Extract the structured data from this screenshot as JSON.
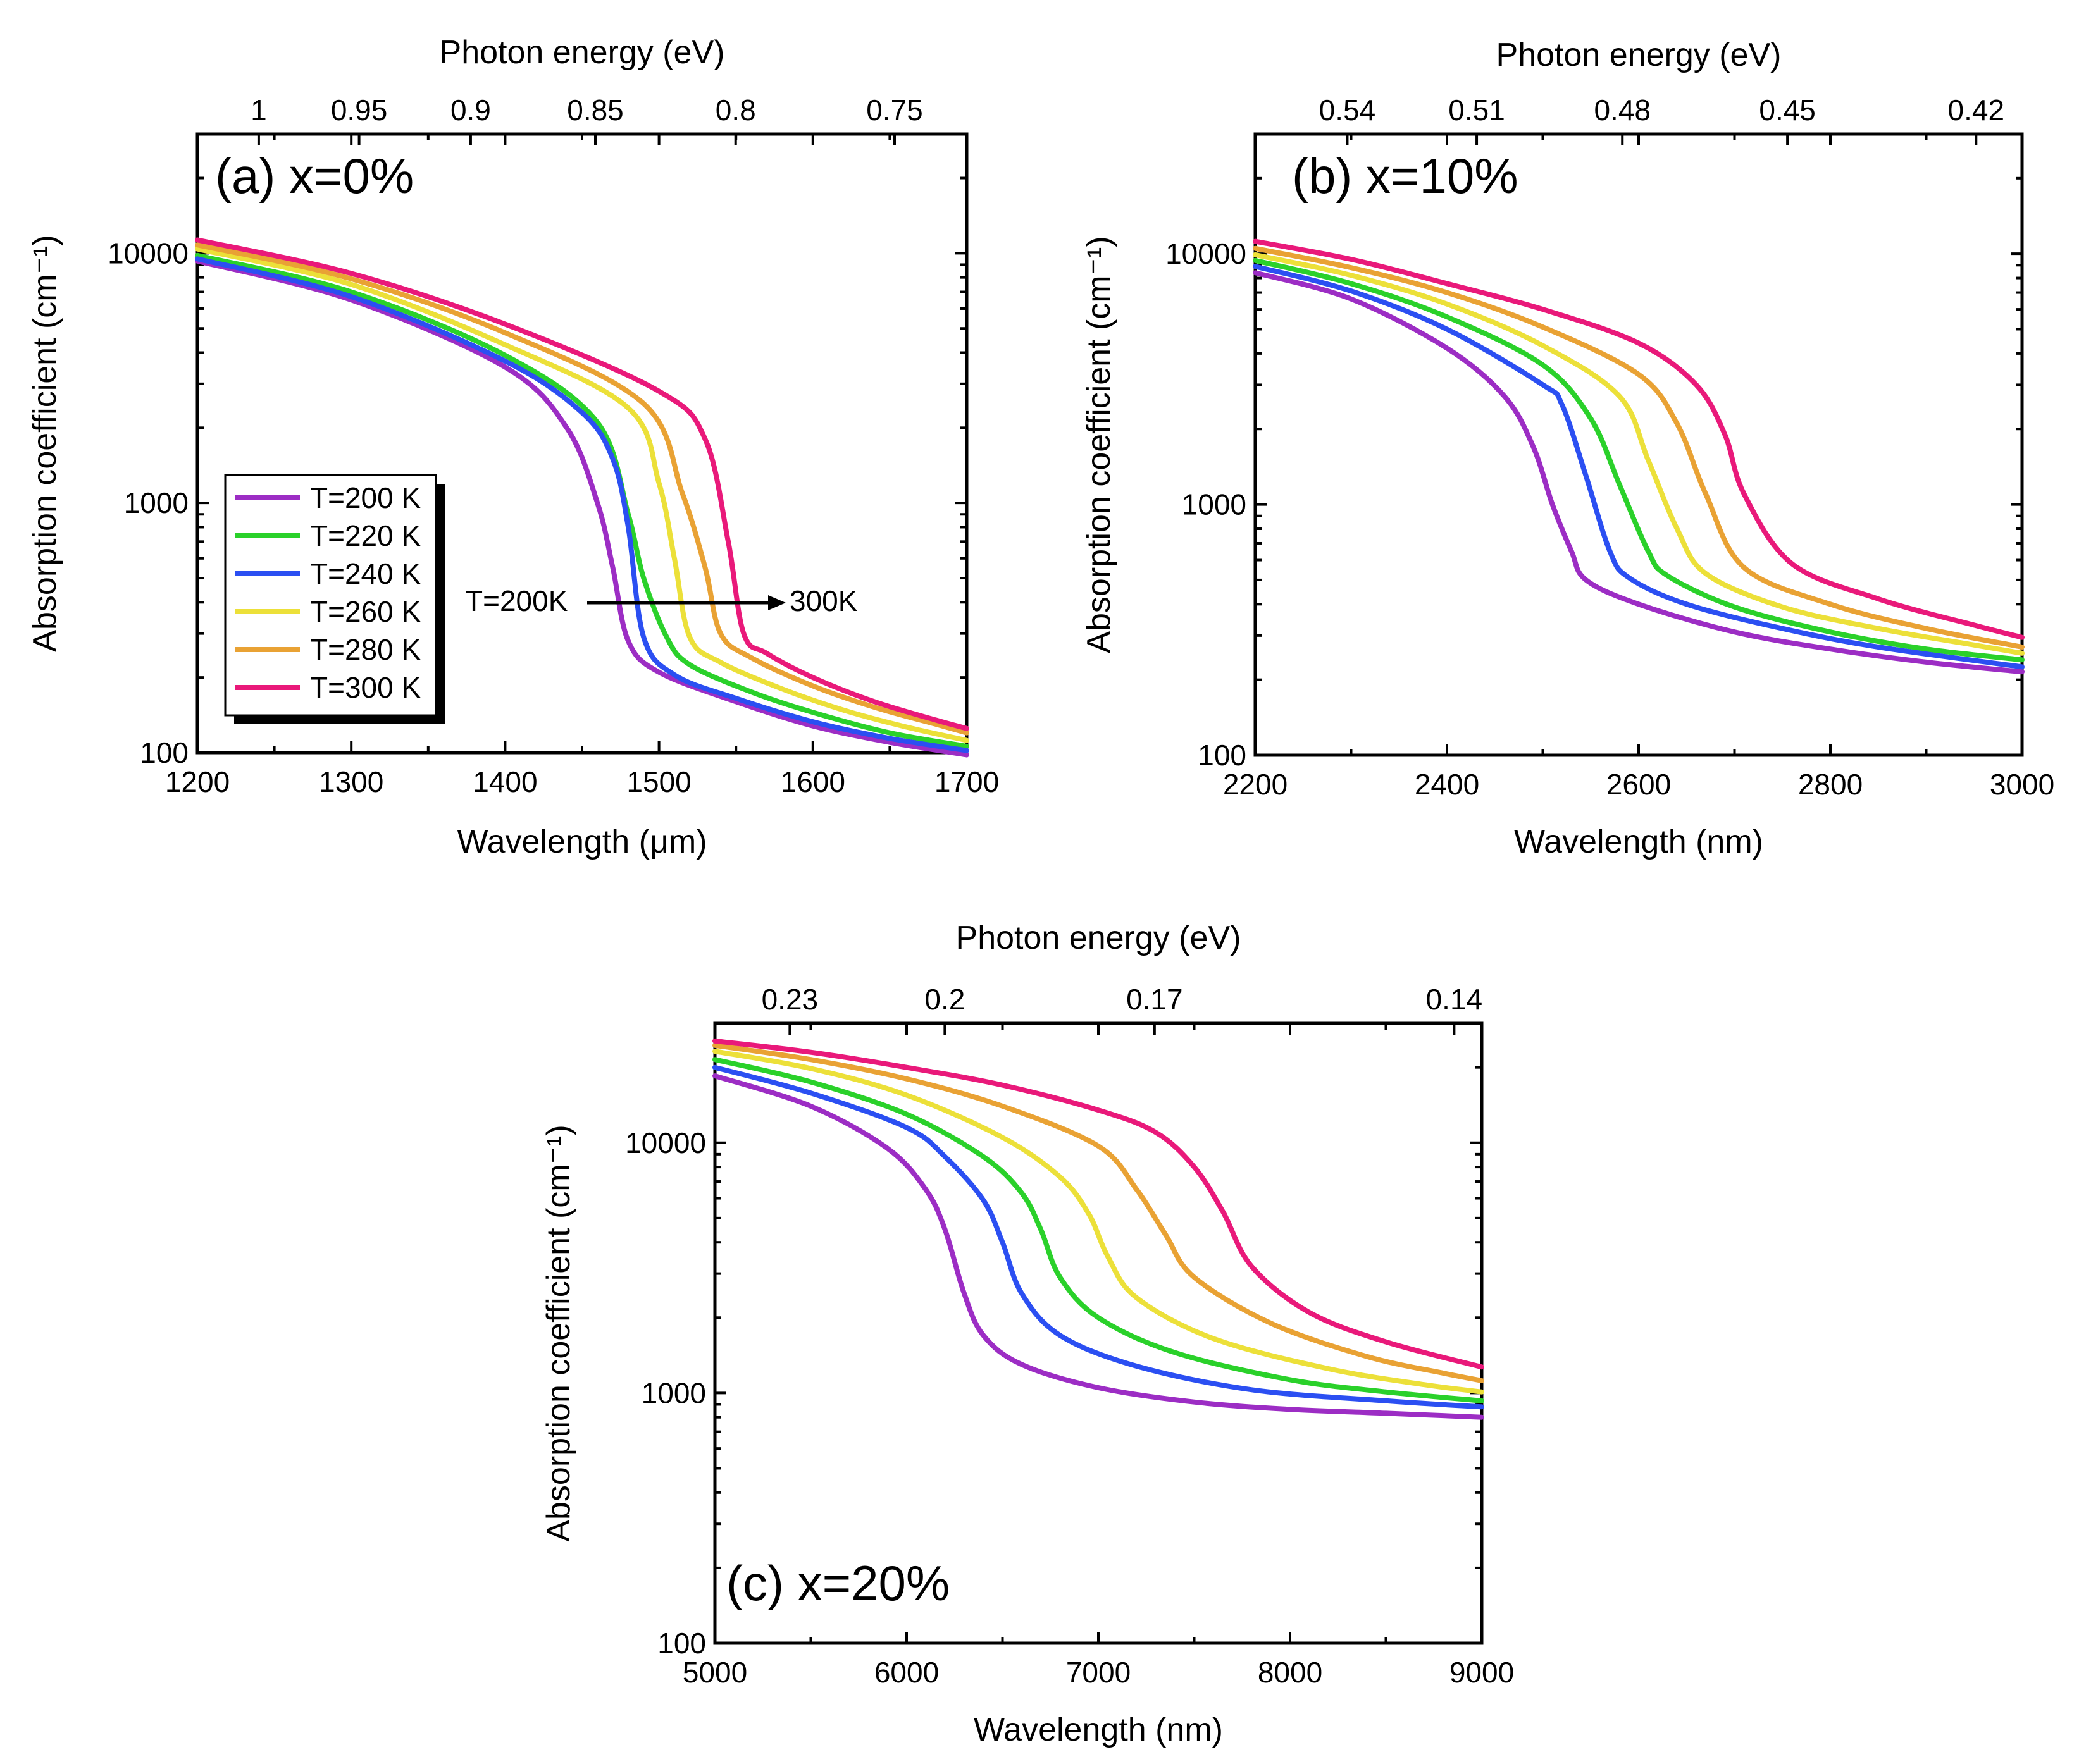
{
  "colors": {
    "T=200 K": "#9c2dc4",
    "T=220 K": "#2ad12a",
    "T=240 K": "#2b4ff2",
    "T=260 K": "#ece039",
    "T=280 K": "#e9a234",
    "T=300 K": "#e9197a"
  },
  "legend": [
    "T=200 K",
    "T=220 K",
    "T=240 K",
    "T=260 K",
    "T=280 K",
    "T=300 K"
  ],
  "chart_data": [
    {
      "type": "line",
      "panel_label": "(a) x=0%",
      "xlabel": "Wavelength (μm)",
      "ylabel": "Absorption coefficient (cm⁻¹)",
      "top_xlabel": "Photon energy (eV)",
      "xlim": [
        1200,
        1700
      ],
      "ylim": [
        100,
        30000
      ],
      "yscale": "log",
      "x_ticks": [
        1200,
        1300,
        1400,
        1500,
        1600,
        1700
      ],
      "x_tick_labels": [
        "1200",
        "1300",
        "1400",
        "1500",
        "1600",
        "1700"
      ],
      "y_ticks": [
        100,
        1000,
        10000
      ],
      "y_tick_labels": [
        "100",
        "1000",
        "10000"
      ],
      "top_ticks": [
        1.0,
        0.95,
        0.9,
        0.85,
        0.8,
        0.75
      ],
      "top_tick_labels": [
        "1",
        "0.95",
        "0.9",
        "0.85",
        "0.8",
        "0.75"
      ],
      "legend_position": "left",
      "annotation": {
        "left": "T=200K",
        "right": "300K",
        "arrow_y": 420
      },
      "series": [
        {
          "name": "T=200 K",
          "x": [
            1200,
            1300,
            1400,
            1440,
            1460,
            1470,
            1480,
            1500,
            1550,
            1600,
            1650,
            1700
          ],
          "values": [
            9300,
            6500,
            3500,
            2000,
            1000,
            550,
            280,
            210,
            160,
            128,
            110,
            98
          ]
        },
        {
          "name": "T=220 K",
          "x": [
            1200,
            1300,
            1400,
            1460,
            1480,
            1490,
            1505,
            1520,
            1560,
            1600,
            1650,
            1700
          ],
          "values": [
            9800,
            7000,
            3900,
            2100,
            900,
            500,
            290,
            225,
            175,
            145,
            120,
            106
          ]
        },
        {
          "name": "T=240 K",
          "x": [
            1200,
            1300,
            1400,
            1450,
            1470,
            1480,
            1490,
            1510,
            1550,
            1600,
            1650,
            1700
          ],
          "values": [
            9500,
            6700,
            3700,
            2300,
            1500,
            800,
            290,
            205,
            165,
            133,
            114,
            102
          ]
        },
        {
          "name": "T=260 K",
          "x": [
            1200,
            1300,
            1400,
            1480,
            1500,
            1510,
            1520,
            1540,
            1580,
            1620,
            1660,
            1700
          ],
          "values": [
            10400,
            7500,
            4300,
            2400,
            1200,
            600,
            290,
            230,
            180,
            148,
            127,
            112
          ]
        },
        {
          "name": "T=280 K",
          "x": [
            1200,
            1300,
            1400,
            1490,
            1515,
            1530,
            1540,
            1560,
            1600,
            1640,
            1680,
            1700
          ],
          "values": [
            10800,
            7900,
            4800,
            2500,
            1100,
            550,
            300,
            240,
            185,
            152,
            130,
            120
          ]
        },
        {
          "name": "T=300 K",
          "x": [
            1200,
            1300,
            1400,
            1500,
            1530,
            1545,
            1555,
            1570,
            1600,
            1640,
            1680,
            1700
          ],
          "values": [
            11300,
            8300,
            5200,
            2800,
            1800,
            700,
            300,
            250,
            200,
            160,
            135,
            125
          ]
        }
      ]
    },
    {
      "type": "line",
      "panel_label": "(b) x=10%",
      "xlabel": "Wavelength (nm)",
      "ylabel": "Absorption coefficient (cm⁻¹)",
      "top_xlabel": "Photon energy (eV)",
      "xlim": [
        2200,
        3000
      ],
      "ylim": [
        100,
        30000
      ],
      "yscale": "log",
      "x_ticks": [
        2200,
        2400,
        2600,
        2800,
        3000
      ],
      "x_tick_labels": [
        "2200",
        "2400",
        "2600",
        "2800",
        "3000"
      ],
      "y_ticks": [
        100,
        1000,
        10000
      ],
      "y_tick_labels": [
        "100",
        "1000",
        "10000"
      ],
      "top_ticks": [
        0.54,
        0.51,
        0.48,
        0.45,
        0.42
      ],
      "top_tick_labels": [
        "0.54",
        "0.51",
        "0.48",
        "0.45",
        "0.42"
      ],
      "series": [
        {
          "name": "T=200 K",
          "x": [
            2200,
            2300,
            2400,
            2460,
            2490,
            2510,
            2530,
            2545,
            2600,
            2700,
            2800,
            2900,
            3000
          ],
          "values": [
            8400,
            6600,
            4200,
            2700,
            1700,
            1000,
            650,
            500,
            400,
            310,
            265,
            235,
            215
          ]
        },
        {
          "name": "T=220 K",
          "x": [
            2200,
            2300,
            2400,
            2500,
            2550,
            2580,
            2610,
            2630,
            2700,
            2800,
            2900,
            3000
          ],
          "values": [
            9400,
            7600,
            5600,
            3600,
            2200,
            1200,
            650,
            520,
            390,
            310,
            265,
            240
          ]
        },
        {
          "name": "T=240 K",
          "x": [
            2200,
            2300,
            2400,
            2500,
            2520,
            2545,
            2570,
            2590,
            2650,
            2750,
            2850,
            3000
          ],
          "values": [
            8900,
            7100,
            5000,
            3000,
            2500,
            1300,
            650,
            510,
            400,
            320,
            270,
            225
          ]
        },
        {
          "name": "T=260 K",
          "x": [
            2200,
            2300,
            2400,
            2500,
            2580,
            2610,
            2640,
            2670,
            2750,
            2850,
            2950,
            3000
          ],
          "values": [
            9900,
            8200,
            6300,
            4300,
            2700,
            1500,
            800,
            530,
            390,
            320,
            275,
            255
          ]
        },
        {
          "name": "T=280 K",
          "x": [
            2200,
            2300,
            2400,
            2500,
            2600,
            2640,
            2670,
            2710,
            2800,
            2900,
            3000
          ],
          "values": [
            10500,
            8800,
            7000,
            5100,
            3300,
            2100,
            1100,
            560,
            400,
            320,
            270
          ]
        },
        {
          "name": "T=300 K",
          "x": [
            2200,
            2300,
            2400,
            2500,
            2600,
            2660,
            2690,
            2710,
            2760,
            2850,
            2950,
            3000
          ],
          "values": [
            11200,
            9500,
            7600,
            6000,
            4400,
            3000,
            1900,
            1100,
            580,
            420,
            330,
            295
          ]
        }
      ]
    },
    {
      "type": "line",
      "panel_label": "(c) x=20%",
      "xlabel": "Wavelength (nm)",
      "ylabel": "Absorption coefficient (cm⁻¹)",
      "top_xlabel": "Photon energy (eV)",
      "xlim": [
        5000,
        9000
      ],
      "ylim": [
        100,
        30000
      ],
      "yscale": "log",
      "x_ticks": [
        5000,
        6000,
        7000,
        8000,
        9000
      ],
      "x_tick_labels": [
        "5000",
        "6000",
        "7000",
        "8000",
        "9000"
      ],
      "y_ticks": [
        100,
        1000,
        10000
      ],
      "y_tick_labels": [
        "100",
        "1000",
        "10000"
      ],
      "top_ticks": [
        0.23,
        0.2,
        0.17,
        0.14
      ],
      "top_tick_labels": [
        "0.23",
        "0.2",
        "0.17",
        "0.14"
      ],
      "series": [
        {
          "name": "T=200 K",
          "x": [
            5000,
            5500,
            5900,
            6100,
            6200,
            6300,
            6400,
            6600,
            7000,
            7500,
            8000,
            8500,
            9000
          ],
          "values": [
            18500,
            14000,
            9500,
            6500,
            4500,
            2500,
            1700,
            1300,
            1050,
            920,
            860,
            830,
            800
          ]
        },
        {
          "name": "T=220 K",
          "x": [
            5000,
            5500,
            6000,
            6400,
            6600,
            6700,
            6800,
            7000,
            7400,
            8000,
            8500,
            9000
          ],
          "values": [
            21500,
            17500,
            13000,
            8800,
            6300,
            4500,
            2900,
            2000,
            1450,
            1130,
            1010,
            930
          ]
        },
        {
          "name": "T=240 K",
          "x": [
            5000,
            5500,
            6000,
            6200,
            6400,
            6500,
            6600,
            6800,
            7200,
            7800,
            8500,
            9000
          ],
          "values": [
            20000,
            15800,
            11500,
            8800,
            5900,
            4000,
            2500,
            1700,
            1280,
            1030,
            930,
            880
          ]
        },
        {
          "name": "T=260 K",
          "x": [
            5000,
            5500,
            6000,
            6500,
            6800,
            6950,
            7050,
            7200,
            7600,
            8200,
            8700,
            9000
          ],
          "values": [
            23200,
            19800,
            15500,
            10500,
            7300,
            5200,
            3500,
            2400,
            1650,
            1250,
            1080,
            1010
          ]
        },
        {
          "name": "T=280 K",
          "x": [
            5000,
            5500,
            6000,
            6500,
            7000,
            7200,
            7350,
            7500,
            7900,
            8400,
            8800,
            9000
          ],
          "values": [
            24500,
            21500,
            18000,
            14000,
            9700,
            6500,
            4300,
            2900,
            1900,
            1400,
            1200,
            1120
          ]
        },
        {
          "name": "T=300 K",
          "x": [
            5000,
            5500,
            6000,
            6500,
            7000,
            7300,
            7500,
            7650,
            7800,
            8100,
            8500,
            9000
          ],
          "values": [
            25500,
            23000,
            20000,
            17000,
            13500,
            11000,
            8000,
            5300,
            3200,
            2100,
            1600,
            1270
          ]
        }
      ]
    }
  ]
}
